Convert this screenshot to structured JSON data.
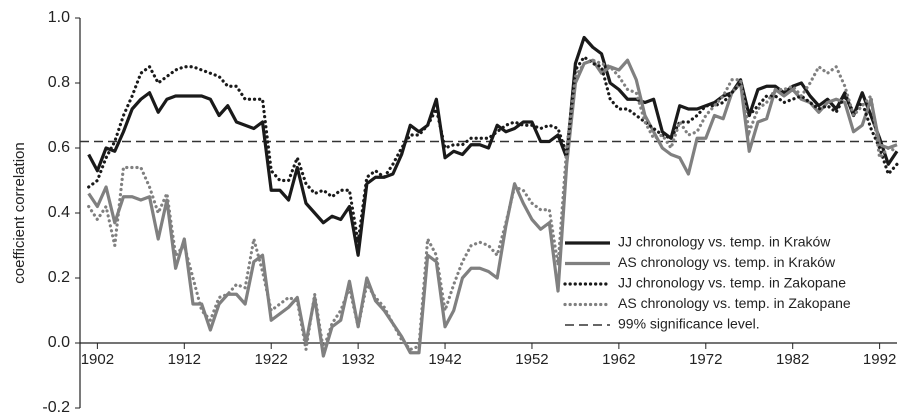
{
  "chart_data": {
    "type": "line",
    "y_label": "coefficient correlation",
    "x": [
      1901,
      1902,
      1903,
      1904,
      1905,
      1906,
      1907,
      1908,
      1909,
      1910,
      1911,
      1912,
      1913,
      1914,
      1915,
      1916,
      1917,
      1918,
      1919,
      1920,
      1921,
      1922,
      1923,
      1924,
      1925,
      1926,
      1927,
      1928,
      1929,
      1930,
      1931,
      1932,
      1933,
      1934,
      1935,
      1936,
      1937,
      1938,
      1939,
      1940,
      1941,
      1942,
      1943,
      1944,
      1945,
      1946,
      1947,
      1948,
      1949,
      1950,
      1951,
      1952,
      1953,
      1954,
      1955,
      1956,
      1957,
      1958,
      1959,
      1960,
      1961,
      1962,
      1963,
      1964,
      1965,
      1966,
      1967,
      1968,
      1969,
      1970,
      1971,
      1972,
      1973,
      1974,
      1975,
      1976,
      1977,
      1978,
      1979,
      1980,
      1981,
      1982,
      1983,
      1984,
      1985,
      1986,
      1987,
      1988,
      1989,
      1990,
      1991,
      1992,
      1993,
      1994
    ],
    "series": [
      {
        "name": "JJ chronology vs. temp. in Kraków",
        "color": "#1a1a1a",
        "style": "solid",
        "values": [
          0.58,
          0.53,
          0.6,
          0.59,
          0.65,
          0.72,
          0.75,
          0.77,
          0.71,
          0.75,
          0.76,
          0.76,
          0.76,
          0.76,
          0.75,
          0.7,
          0.73,
          0.68,
          0.67,
          0.66,
          0.68,
          0.47,
          0.47,
          0.44,
          0.54,
          0.43,
          0.4,
          0.37,
          0.39,
          0.38,
          0.42,
          0.27,
          0.49,
          0.51,
          0.51,
          0.52,
          0.58,
          0.67,
          0.65,
          0.67,
          0.75,
          0.57,
          0.59,
          0.58,
          0.61,
          0.61,
          0.6,
          0.67,
          0.65,
          0.66,
          0.68,
          0.68,
          0.62,
          0.62,
          0.64,
          0.57,
          0.86,
          0.94,
          0.91,
          0.89,
          0.8,
          0.78,
          0.75,
          0.75,
          0.74,
          0.75,
          0.65,
          0.63,
          0.73,
          0.72,
          0.72,
          0.73,
          0.74,
          0.76,
          0.77,
          0.81,
          0.7,
          0.78,
          0.79,
          0.79,
          0.77,
          0.79,
          0.8,
          0.76,
          0.73,
          0.75,
          0.72,
          0.77,
          0.7,
          0.77,
          0.7,
          0.63,
          0.55,
          0.59
        ]
      },
      {
        "name": "AS chronology vs. temp. in Kraków",
        "color": "#808080",
        "style": "solid",
        "values": [
          0.46,
          0.42,
          0.48,
          0.37,
          0.45,
          0.45,
          0.44,
          0.45,
          0.32,
          0.44,
          0.23,
          0.32,
          0.12,
          0.12,
          0.04,
          0.12,
          0.15,
          0.15,
          0.12,
          0.25,
          0.27,
          0.07,
          0.09,
          0.11,
          0.14,
          0.0,
          0.14,
          -0.04,
          0.05,
          0.07,
          0.19,
          0.05,
          0.2,
          0.13,
          0.1,
          0.06,
          0.02,
          -0.03,
          -0.03,
          0.27,
          0.25,
          0.05,
          0.1,
          0.2,
          0.23,
          0.23,
          0.22,
          0.2,
          0.36,
          0.49,
          0.43,
          0.38,
          0.35,
          0.37,
          0.16,
          0.55,
          0.8,
          0.86,
          0.87,
          0.83,
          0.85,
          0.84,
          0.87,
          0.81,
          0.7,
          0.65,
          0.6,
          0.58,
          0.57,
          0.52,
          0.63,
          0.63,
          0.7,
          0.69,
          0.77,
          0.8,
          0.59,
          0.68,
          0.69,
          0.78,
          0.76,
          0.78,
          0.75,
          0.74,
          0.71,
          0.74,
          0.75,
          0.74,
          0.65,
          0.67,
          0.75,
          0.61,
          0.6,
          0.61
        ]
      },
      {
        "name": "JJ chronology vs. temp. in Zakopane",
        "color": "#1a1a1a",
        "style": "dotted",
        "values": [
          0.48,
          0.5,
          0.57,
          0.62,
          0.7,
          0.76,
          0.83,
          0.85,
          0.8,
          0.82,
          0.84,
          0.85,
          0.85,
          0.84,
          0.83,
          0.82,
          0.79,
          0.79,
          0.75,
          0.75,
          0.75,
          0.53,
          0.5,
          0.5,
          0.57,
          0.49,
          0.46,
          0.47,
          0.45,
          0.47,
          0.47,
          0.31,
          0.51,
          0.53,
          0.51,
          0.55,
          0.6,
          0.64,
          0.64,
          0.67,
          0.72,
          0.6,
          0.61,
          0.61,
          0.63,
          0.63,
          0.63,
          0.65,
          0.67,
          0.68,
          0.67,
          0.67,
          0.66,
          0.67,
          0.66,
          0.58,
          0.84,
          0.88,
          0.86,
          0.85,
          0.75,
          0.72,
          0.72,
          0.7,
          0.68,
          0.66,
          0.64,
          0.63,
          0.68,
          0.68,
          0.7,
          0.73,
          0.73,
          0.74,
          0.77,
          0.8,
          0.7,
          0.73,
          0.76,
          0.76,
          0.74,
          0.75,
          0.76,
          0.74,
          0.72,
          0.73,
          0.71,
          0.76,
          0.71,
          0.74,
          0.66,
          0.6,
          0.52,
          0.55
        ]
      },
      {
        "name": "AS chronology vs. temp. in Zakopane",
        "color": "#808080",
        "style": "dotted",
        "values": [
          0.42,
          0.38,
          0.42,
          0.3,
          0.54,
          0.54,
          0.54,
          0.48,
          0.4,
          0.46,
          0.27,
          0.3,
          0.2,
          0.1,
          0.07,
          0.14,
          0.15,
          0.18,
          0.17,
          0.32,
          0.22,
          0.1,
          0.12,
          0.14,
          0.13,
          -0.02,
          0.15,
          -0.02,
          0.06,
          0.1,
          0.17,
          0.05,
          0.18,
          0.14,
          0.11,
          0.06,
          0.01,
          -0.02,
          -0.01,
          0.32,
          0.27,
          0.1,
          0.18,
          0.25,
          0.3,
          0.31,
          0.3,
          0.27,
          0.37,
          0.48,
          0.47,
          0.43,
          0.41,
          0.41,
          0.24,
          0.6,
          0.82,
          0.86,
          0.87,
          0.86,
          0.85,
          0.82,
          0.78,
          0.77,
          0.68,
          0.63,
          0.64,
          0.6,
          0.68,
          0.64,
          0.65,
          0.7,
          0.73,
          0.76,
          0.81,
          0.81,
          0.65,
          0.72,
          0.74,
          0.78,
          0.78,
          0.79,
          0.76,
          0.8,
          0.85,
          0.83,
          0.85,
          0.79,
          0.7,
          0.73,
          0.76,
          0.57,
          0.6,
          0.59
        ]
      }
    ],
    "significance": {
      "name": "99% significance level.",
      "value": 0.62,
      "color": "#333333"
    },
    "xlim": [
      1900,
      1994
    ],
    "xticks": [
      1902,
      1912,
      1922,
      1932,
      1942,
      1952,
      1962,
      1972,
      1982,
      1992
    ],
    "ylim": [
      -0.2,
      1.0
    ],
    "yticks": [
      {
        "value": -0.2,
        "label": "-0.2"
      },
      {
        "value": 0,
        "label": "0.0"
      },
      {
        "value": 0.2,
        "label": "0.2"
      },
      {
        "value": 0.4,
        "label": "0.4"
      },
      {
        "value": 0.6,
        "label": "0.6"
      },
      {
        "value": 0.8,
        "label": "0.8"
      },
      {
        "value": 1,
        "label": "1.0"
      }
    ],
    "legend": "lower right"
  }
}
